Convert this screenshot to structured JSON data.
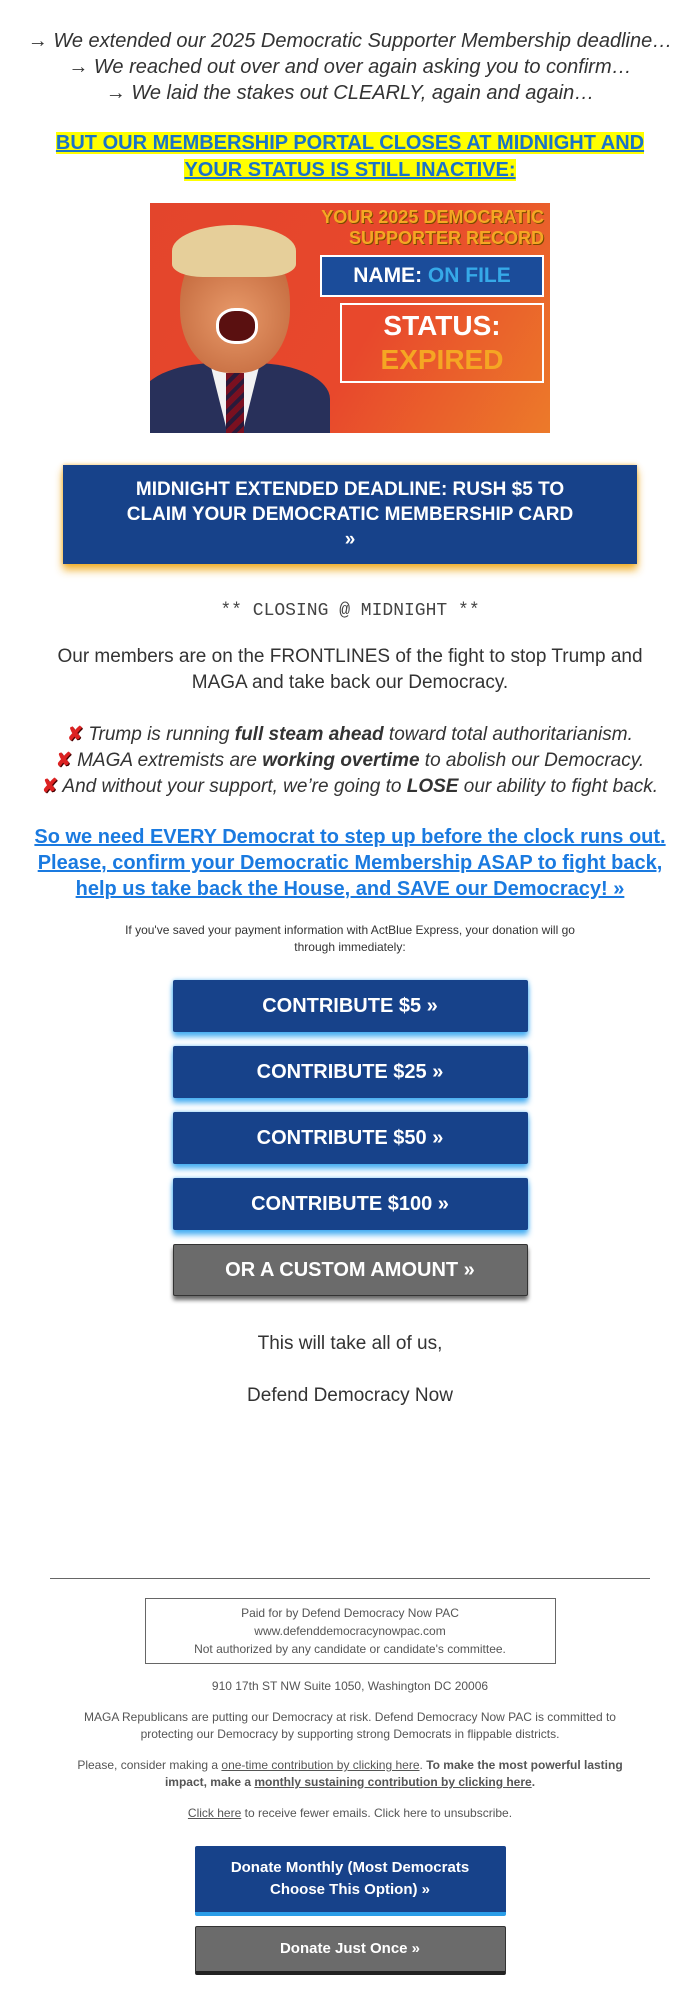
{
  "intro": {
    "lines": [
      "→ We extended our 2025 Democratic Supporter Membership deadline…",
      "→ We reached out over and over again asking you to confirm…",
      "→ We laid the stakes out CLEARLY, again and again…"
    ]
  },
  "alert": "BUT OUR MEMBERSHIP PORTAL CLOSES AT MIDNIGHT AND YOUR STATUS IS STILL INACTIVE:",
  "hero": {
    "title": "YOUR 2025 DEMOCRATIC SUPPORTER RECORD",
    "name_label": "NAME:",
    "name_value": "ON FILE",
    "status_label": "STATUS:",
    "status_value": "EXPIRED"
  },
  "cta": "MIDNIGHT EXTENDED DEADLINE: RUSH $5 TO CLAIM YOUR DEMOCRATIC MEMBERSHIP CARD »",
  "closing": "** CLOSING @ MIDNIGHT **",
  "paragraph": "Our members are on the FRONTLINES of the fight to stop Trump and MAGA and take back our Democracy.",
  "bullets": [
    {
      "icon": "cross-mark-icon",
      "pre": " Trump is running ",
      "bold": "full steam ahead",
      "post": " toward total authoritarianism."
    },
    {
      "icon": "cross-mark-icon",
      "pre": " MAGA extremists are ",
      "bold": "working overtime",
      "post": " to abolish our Democracy."
    },
    {
      "icon": "cross-mark-icon",
      "pre": " And without your support, we’re going to ",
      "bold": "LOSE",
      "post": " our ability to fight back."
    }
  ],
  "link": "So we need EVERY Democrat to step up before the clock runs out. Please, confirm your Democratic Membership ASAP to fight back, help us take back the House, and SAVE our Democracy! »",
  "express_note": "If you've saved your payment information with ActBlue Express, your donation will go through immediately:",
  "buttons": [
    "CONTRIBUTE $5 »",
    "CONTRIBUTE $25 »",
    "CONTRIBUTE $50 »",
    "CONTRIBUTE $100 »",
    "OR A CUSTOM AMOUNT »"
  ],
  "signoff": "This will take all of us,",
  "signature": "Defend Democracy Now",
  "footer": {
    "disclaimer": [
      "Paid for by Defend Democracy Now PAC",
      "www.defenddemocracynowpac.com",
      "Not authorized by any candidate or candidate's committee."
    ],
    "address": "910 17th ST NW Suite 1050, Washington DC 20006",
    "mission": "MAGA Republicans are putting our Democracy at risk. Defend Democracy Now PAC is committed to protecting our Democracy by supporting strong Democrats in flippable districts.",
    "consider_pre": "Please, consider making a ",
    "consider_link": "one-time contribution by clicking here",
    "consider_mid": ". ",
    "consider_bold": "To make the most powerful lasting impact, make a ",
    "monthly_link": "monthly sustaining contribution by clicking here",
    "consider_end": ".",
    "fewer_link": "Click here",
    "fewer_rest": " to receive fewer emails. Click here to unsubscribe.",
    "donate_monthly": "Donate Monthly (Most Democrats Choose This Option) »",
    "donate_once": "Donate Just Once »"
  },
  "colors": {
    "brand_blue": "#17428a",
    "link_blue": "#1a7ae0",
    "highlight": "#ffff00",
    "gray_button": "#6b6b6b",
    "cta_glow": "#f0aa1e"
  }
}
